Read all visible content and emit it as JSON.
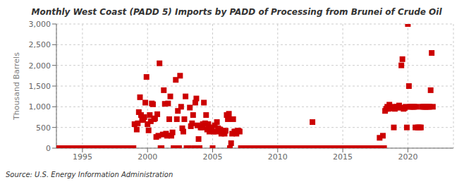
{
  "chart_data": {
    "type": "scatter",
    "title": "Monthly West Coast (PADD 5) Imports by PADD of Processing from Brunei of Crude Oil",
    "ylabel": "Thousand Barrels",
    "annotations": [
      "Source: U.S. Energy Information Administration"
    ],
    "color": "#cc0000",
    "marker": "square",
    "grid": true,
    "xlim": [
      1993.0,
      2023.5
    ],
    "xticks": [
      1995,
      2000,
      2005,
      2010,
      2015,
      2020
    ],
    "ylim": [
      0,
      3000
    ],
    "yticks": [
      0,
      500,
      {
        "value": 1000,
        "label": "1,000"
      },
      {
        "value": 1500,
        "label": "1,500"
      },
      {
        "value": 2000,
        "label": "2,000"
      },
      {
        "value": 2500,
        "label": "2,500"
      },
      {
        "value": 3000,
        "label": "3,000"
      }
    ],
    "x": [
      1993.08,
      1993.17,
      1993.25,
      1993.33,
      1993.42,
      1993.5,
      1993.58,
      1993.67,
      1993.75,
      1993.83,
      1993.92,
      1994.0,
      1994.08,
      1994.17,
      1994.25,
      1994.33,
      1994.42,
      1994.5,
      1994.58,
      1994.67,
      1994.75,
      1994.83,
      1994.92,
      1995.0,
      1995.08,
      1995.17,
      1995.25,
      1995.33,
      1995.42,
      1995.5,
      1995.58,
      1995.67,
      1995.75,
      1995.83,
      1995.92,
      1996.0,
      1996.08,
      1996.17,
      1996.25,
      1996.33,
      1996.42,
      1996.5,
      1996.58,
      1996.67,
      1996.75,
      1996.83,
      1996.92,
      1997.0,
      1997.08,
      1997.17,
      1997.25,
      1997.33,
      1997.42,
      1997.5,
      1997.58,
      1997.67,
      1997.75,
      1997.83,
      1997.92,
      1998.0,
      1998.08,
      1998.17,
      1998.25,
      1998.33,
      1998.42,
      1998.5,
      1998.58,
      1998.67,
      1998.75,
      1998.83,
      1998.92,
      1999.0,
      1999.17,
      1999.25,
      1999.33,
      1999.42,
      1999.5,
      1999.58,
      1999.67,
      1999.75,
      1999.83,
      1999.92,
      2000.0,
      2000.08,
      2000.17,
      2000.25,
      2000.33,
      2000.42,
      2000.5,
      2000.58,
      2000.67,
      2000.75,
      2000.83,
      2000.92,
      2001.0,
      2001.08,
      2001.17,
      2001.25,
      2001.33,
      2001.42,
      2001.5,
      2001.58,
      2001.67,
      2001.75,
      2001.83,
      2001.92,
      2002.0,
      2002.08,
      2002.17,
      2002.25,
      2002.33,
      2002.42,
      2002.5,
      2002.58,
      2002.67,
      2002.75,
      2002.83,
      2002.92,
      2003.0,
      2003.08,
      2003.17,
      2003.25,
      2003.33,
      2003.42,
      2003.5,
      2003.58,
      2003.67,
      2003.75,
      2003.83,
      2003.92,
      2004.0,
      2004.08,
      2004.17,
      2004.25,
      2004.33,
      2004.42,
      2004.5,
      2004.58,
      2004.67,
      2004.75,
      2004.83,
      2004.92,
      2005.0,
      2005.08,
      2005.17,
      2005.25,
      2005.33,
      2005.42,
      2005.5,
      2005.58,
      2005.67,
      2005.75,
      2005.83,
      2005.92,
      2006.0,
      2006.08,
      2006.17,
      2006.25,
      2006.33,
      2006.42,
      2006.5,
      2006.58,
      2006.67,
      2006.75,
      2006.83,
      2006.92,
      2007.0,
      2007.08,
      2007.17,
      2007.25,
      2007.33,
      2007.42,
      2007.5,
      2007.58,
      2007.67,
      2007.75,
      2007.83,
      2007.92,
      2008.0,
      2008.08,
      2008.17,
      2008.25,
      2008.33,
      2008.42,
      2008.5,
      2008.58,
      2008.67,
      2008.75,
      2008.83,
      2008.92,
      2009.0,
      2009.08,
      2009.17,
      2009.25,
      2009.33,
      2009.42,
      2009.5,
      2009.58,
      2009.67,
      2009.75,
      2009.83,
      2009.92,
      2010.0,
      2010.08,
      2010.17,
      2010.25,
      2010.33,
      2010.42,
      2010.5,
      2010.58,
      2010.67,
      2010.75,
      2010.83,
      2010.92,
      2011.0,
      2011.08,
      2011.17,
      2011.25,
      2011.33,
      2011.42,
      2011.5,
      2011.58,
      2011.67,
      2011.75,
      2011.83,
      2011.92,
      2012.0,
      2012.08,
      2012.17,
      2012.25,
      2012.33,
      2012.42,
      2012.5,
      2012.58,
      2012.67,
      2012.75,
      2012.83,
      2012.92,
      2013.0,
      2013.08,
      2013.17,
      2013.25,
      2013.33,
      2013.42,
      2013.5,
      2013.58,
      2013.67,
      2013.75,
      2013.83,
      2013.92,
      2014.0,
      2014.08,
      2014.17,
      2014.25,
      2014.33,
      2014.42,
      2014.5,
      2014.58,
      2014.67,
      2014.75,
      2014.83,
      2014.92,
      2015.0,
      2015.08,
      2015.17,
      2015.25,
      2015.33,
      2015.42,
      2015.5,
      2015.58,
      2015.67,
      2015.75,
      2015.83,
      2015.92,
      2016.0,
      2016.08,
      2016.17,
      2016.25,
      2016.33,
      2016.42,
      2016.5,
      2016.58,
      2016.67,
      2016.75,
      2016.83,
      2016.92,
      2017.0,
      2017.08,
      2017.17,
      2017.25,
      2017.33,
      2017.42,
      2017.5,
      2017.58,
      2017.67,
      2017.75,
      2017.83,
      2017.92,
      2018.0,
      2018.08,
      2018.17,
      2018.25,
      2018.33,
      2018.42,
      2018.5,
      2018.58,
      2018.67,
      2018.75,
      2018.83,
      2018.92,
      2019.0,
      2019.08,
      2019.17,
      2019.25,
      2019.33,
      2019.42,
      2019.5,
      2019.58,
      2019.67,
      2019.75,
      2019.83,
      2019.92,
      2020.0,
      2020.08,
      2020.17,
      2020.25,
      2020.33,
      2020.42,
      2020.5,
      2020.58,
      2020.67,
      2020.75,
      2020.83,
      2020.92,
      2021.0,
      2021.08,
      2021.17,
      2021.25,
      2021.33,
      2021.42,
      2021.5,
      2021.58,
      2021.67,
      2021.75,
      2021.83,
      2021.92
    ],
    "values": [
      0,
      0,
      0,
      0,
      0,
      0,
      0,
      0,
      0,
      0,
      0,
      0,
      0,
      0,
      0,
      0,
      0,
      0,
      0,
      0,
      0,
      0,
      0,
      0,
      0,
      0,
      0,
      0,
      0,
      0,
      0,
      0,
      0,
      0,
      0,
      0,
      0,
      0,
      0,
      0,
      0,
      0,
      0,
      0,
      0,
      0,
      0,
      0,
      0,
      0,
      0,
      0,
      0,
      0,
      0,
      0,
      0,
      0,
      0,
      0,
      0,
      0,
      0,
      0,
      0,
      0,
      0,
      0,
      0,
      0,
      0,
      580,
      450,
      600,
      870,
      1230,
      800,
      680,
      700,
      750,
      1100,
      1720,
      580,
      430,
      800,
      650,
      1080,
      1060,
      700,
      720,
      270,
      820,
      300,
      2050,
      0,
      0,
      330,
      1400,
      1070,
      350,
      300,
      1080,
      700,
      1250,
      300,
      380,
      0,
      0,
      1650,
      700,
      900,
      0,
      1750,
      1000,
      480,
      400,
      700,
      1250,
      0,
      0,
      0,
      980,
      530,
      600,
      800,
      0,
      1100,
      1200,
      550,
      220,
      0,
      500,
      500,
      580,
      1100,
      600,
      800,
      450,
      580,
      400,
      500,
      500,
      0,
      400,
      550,
      400,
      630,
      480,
      450,
      450,
      350,
      400,
      420,
      350,
      420,
      800,
      700,
      830,
      0,
      120,
      350,
      700,
      400,
      400,
      350,
      420,
      420,
      400,
      0,
      0,
      0,
      0,
      0,
      0,
      0,
      0,
      0,
      0,
      0,
      0,
      0,
      0,
      0,
      0,
      0,
      0,
      0,
      0,
      0,
      0,
      0,
      0,
      0,
      0,
      0,
      0,
      0,
      0,
      0,
      0,
      0,
      0,
      0,
      0,
      0,
      0,
      0,
      0,
      0,
      0,
      0,
      0,
      0,
      0,
      0,
      0,
      0,
      0,
      0,
      0,
      0,
      0,
      0,
      0,
      0,
      0,
      0,
      0,
      0,
      0,
      0,
      0,
      0,
      0,
      630,
      0,
      0,
      0,
      0,
      0,
      0,
      0,
      0,
      0,
      0,
      0,
      0,
      0,
      0,
      0,
      0,
      0,
      0,
      0,
      0,
      0,
      0,
      0,
      0,
      0,
      0,
      0,
      0,
      0,
      0,
      0,
      0,
      0,
      0,
      0,
      0,
      0,
      0,
      0,
      0,
      0,
      0,
      0,
      0,
      0,
      0,
      0,
      0,
      0,
      0,
      0,
      0,
      0,
      0,
      0,
      0,
      0,
      0,
      0,
      0,
      0,
      250,
      0,
      0,
      300,
      0,
      900,
      950,
      1000,
      950,
      1050,
      1000,
      980,
      960,
      500,
      950,
      1000,
      1000,
      980,
      1030,
      980,
      2000,
      2150,
      950,
      970,
      1000,
      500,
      3000,
      1500,
      1000,
      1000,
      1000,
      1000,
      1000,
      500,
      1000,
      500,
      500,
      500,
      500,
      1000,
      1000,
      1000,
      1000,
      1000,
      1000,
      1000,
      1000,
      1400,
      2300,
      1000
    ]
  }
}
